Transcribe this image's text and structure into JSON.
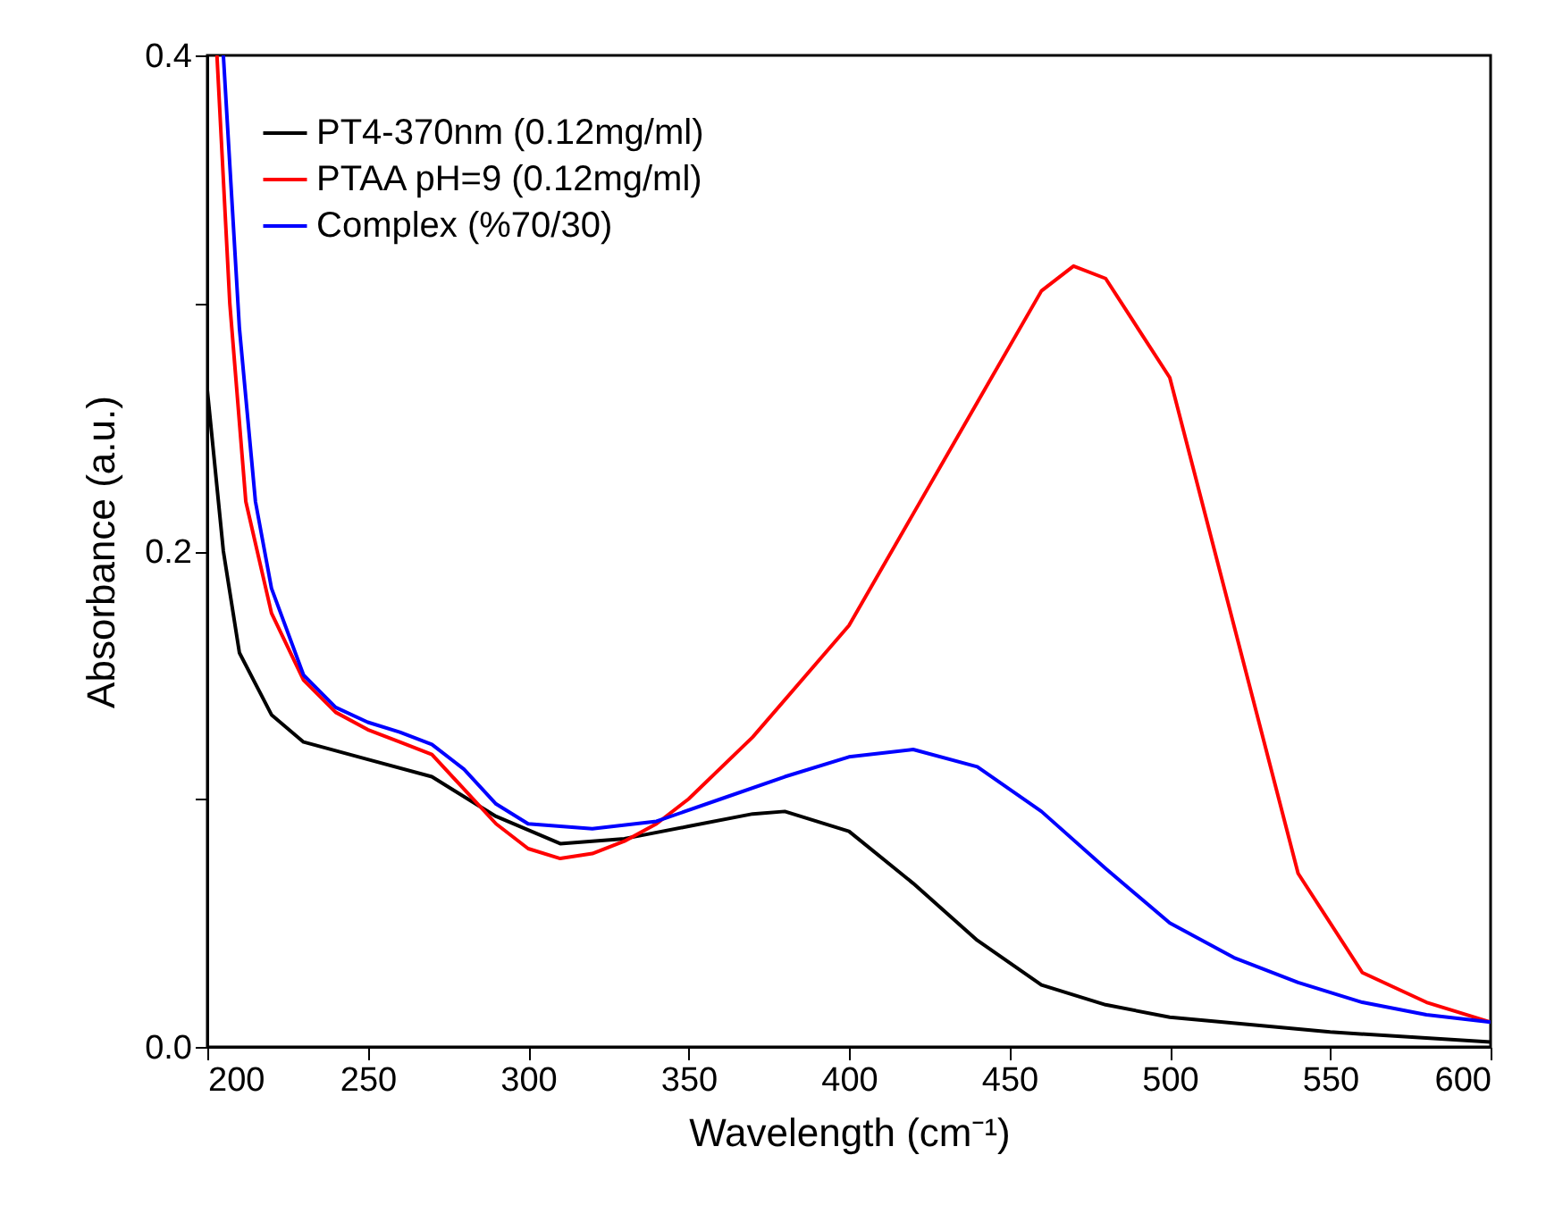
{
  "chart_data": {
    "type": "line",
    "xlabel": "Wavelength (cm⁻¹)",
    "ylabel": "Absorbance (a.u.)",
    "xlim": [
      200,
      600
    ],
    "ylim": [
      0,
      0.4
    ],
    "xticks": [
      200,
      250,
      300,
      350,
      400,
      450,
      500,
      550,
      600
    ],
    "yticks": [
      {
        "value": 0,
        "label": "0.0"
      },
      {
        "value": 0.1,
        "label": null
      },
      {
        "value": 0.2,
        "label": "0.2"
      },
      {
        "value": 0.3,
        "label": null
      },
      {
        "value": 0.4,
        "label": "0.4"
      }
    ],
    "grid": false,
    "legend": "top left",
    "line_style": "solid",
    "marker": "none",
    "series": [
      {
        "name": "PT4-370nm (0.12mg/ml)",
        "color": "#000000",
        "x": [
          200,
          205,
          210,
          220,
          230,
          250,
          270,
          290,
          310,
          330,
          350,
          370,
          380,
          400,
          420,
          440,
          460,
          480,
          500,
          550,
          600
        ],
        "values": [
          0.265,
          0.2,
          0.159,
          0.134,
          0.123,
          0.116,
          0.109,
          0.093,
          0.082,
          0.084,
          0.089,
          0.094,
          0.095,
          0.087,
          0.066,
          0.043,
          0.025,
          0.017,
          0.012,
          0.006,
          0.002
        ]
      },
      {
        "name": "PTAA pH=9 (0.12mg/ml)",
        "color": "#ff0000",
        "x": [
          203,
          207,
          212,
          220,
          230,
          240,
          250,
          260,
          270,
          280,
          290,
          300,
          310,
          320,
          330,
          340,
          350,
          370,
          400,
          420,
          440,
          460,
          470,
          480,
          500,
          520,
          540,
          560,
          580,
          600
        ],
        "values": [
          0.4,
          0.3,
          0.22,
          0.175,
          0.148,
          0.135,
          0.128,
          0.123,
          0.118,
          0.104,
          0.09,
          0.08,
          0.076,
          0.078,
          0.083,
          0.09,
          0.1,
          0.125,
          0.17,
          0.215,
          0.26,
          0.305,
          0.315,
          0.31,
          0.27,
          0.17,
          0.07,
          0.03,
          0.018,
          0.01
        ]
      },
      {
        "name": "Complex (%70/30)",
        "color": "#0000ff",
        "x": [
          205,
          210,
          215,
          220,
          230,
          240,
          250,
          260,
          270,
          280,
          290,
          300,
          320,
          340,
          360,
          380,
          400,
          420,
          440,
          460,
          480,
          500,
          520,
          540,
          560,
          580,
          600
        ],
        "values": [
          0.4,
          0.29,
          0.22,
          0.185,
          0.15,
          0.137,
          0.131,
          0.127,
          0.122,
          0.112,
          0.098,
          0.09,
          0.088,
          0.091,
          0.1,
          0.109,
          0.117,
          0.12,
          0.113,
          0.095,
          0.072,
          0.05,
          0.036,
          0.026,
          0.018,
          0.013,
          0.01
        ]
      }
    ]
  }
}
